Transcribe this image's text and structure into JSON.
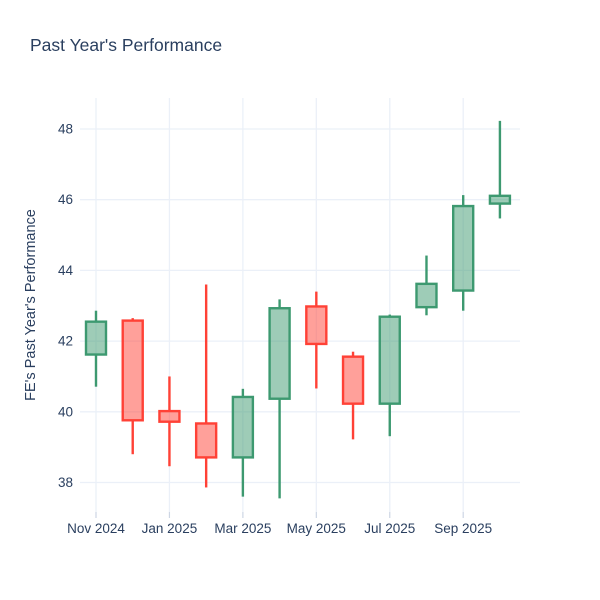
{
  "title": "Past Year's Performance",
  "yaxis_title": "FE's Past Year's Performance",
  "chart_data": {
    "type": "candlestick",
    "title": "Past Year's Performance",
    "xlabel": "",
    "ylabel": "FE's Past Year's Performance",
    "x": [
      "Nov 2024",
      "Dec 2024",
      "Jan 2025",
      "Feb 2025",
      "Mar 2025",
      "Apr 2025",
      "May 2025",
      "Jun 2025",
      "Jul 2025",
      "Aug 2025",
      "Sep 2025",
      "Oct 2025"
    ],
    "open": [
      41.62,
      42.58,
      40.02,
      39.67,
      38.71,
      40.37,
      42.98,
      41.56,
      40.23,
      42.96,
      43.43,
      45.89
    ],
    "high": [
      42.86,
      42.65,
      41.0,
      43.6,
      40.65,
      43.18,
      43.4,
      41.7,
      42.75,
      44.42,
      46.13,
      48.23
    ],
    "low": [
      40.71,
      38.8,
      38.46,
      37.86,
      37.6,
      37.55,
      40.66,
      39.22,
      39.31,
      42.73,
      42.86,
      45.47
    ],
    "close": [
      42.55,
      39.76,
      39.72,
      38.71,
      40.42,
      42.93,
      41.92,
      40.23,
      42.69,
      43.62,
      45.82,
      46.11
    ],
    "yticks": [
      38,
      40,
      42,
      44,
      46,
      48
    ],
    "xtick_indices": [
      0,
      2,
      4,
      6,
      8,
      10
    ],
    "xtick_labels": [
      "Nov 2024",
      "Jan 2025",
      "Mar 2025",
      "May 2025",
      "Jul 2025",
      "Sep 2025"
    ],
    "ylim": [
      37.17,
      48.88
    ],
    "grid": true,
    "legend": "none",
    "colors": {
      "increasing": "#3D9970",
      "increasing_fill": "rgba(61,153,112,0.5)",
      "decreasing": "#FF4136",
      "decreasing_fill": "rgba(255,65,54,0.5)",
      "grid": "#ebf0f8",
      "tick_mark": "#cdd6e4",
      "text": "#2a3f5f",
      "background": "#ffffff"
    }
  }
}
